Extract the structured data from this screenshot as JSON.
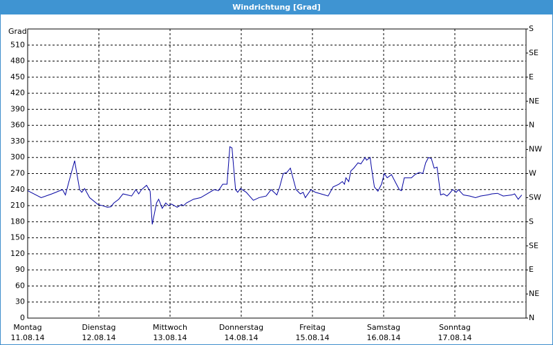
{
  "chart_data": {
    "type": "line",
    "title": "Windrichtung [Grad]",
    "y_label": "Grad",
    "color": "#0000a0",
    "grid": true,
    "xlim": [
      0,
      7
    ],
    "ylim": [
      0,
      540
    ],
    "y2lim": [
      0,
      540
    ],
    "xticks": [
      {
        "value": 0,
        "label": [
          "Montag",
          "11.08.14"
        ]
      },
      {
        "value": 1,
        "label": [
          "Dienstag",
          "12.08.14"
        ]
      },
      {
        "value": 2,
        "label": [
          "Mittwoch",
          "13.08.14"
        ]
      },
      {
        "value": 3,
        "label": [
          "Donnerstag",
          "14.08.14"
        ]
      },
      {
        "value": 4,
        "label": [
          "Freitag",
          "15.08.14"
        ]
      },
      {
        "value": 5,
        "label": [
          "Samstag",
          "16.08.14"
        ]
      },
      {
        "value": 6,
        "label": [
          "Sonntag",
          "17.08.14"
        ]
      }
    ],
    "yticks": [
      0,
      30,
      60,
      90,
      120,
      150,
      180,
      210,
      240,
      270,
      300,
      330,
      360,
      390,
      420,
      450,
      480,
      510
    ],
    "y2ticks": [
      {
        "value": 0,
        "label": "N"
      },
      {
        "value": 45,
        "label": "NE"
      },
      {
        "value": 90,
        "label": "E"
      },
      {
        "value": 135,
        "label": "SE"
      },
      {
        "value": 180,
        "label": "S"
      },
      {
        "value": 225,
        "label": "SW"
      },
      {
        "value": 270,
        "label": "W"
      },
      {
        "value": 315,
        "label": "NW"
      },
      {
        "value": 360,
        "label": "N"
      },
      {
        "value": 405,
        "label": "NE"
      },
      {
        "value": 450,
        "label": "E"
      },
      {
        "value": 495,
        "label": "SE"
      },
      {
        "value": 540,
        "label": "S"
      }
    ],
    "x": [
      0,
      0.19,
      0.34,
      0.49,
      0.53,
      0.58,
      0.66,
      0.73,
      0.76,
      0.8,
      0.87,
      0.99,
      1.05,
      1.12,
      1.17,
      1.21,
      1.28,
      1.34,
      1.4,
      1.46,
      1.52,
      1.56,
      1.6,
      1.67,
      1.72,
      1.75,
      1.81,
      1.84,
      1.89,
      1.94,
      1.98,
      2.02,
      2.1,
      2.16,
      2.19,
      2.23,
      2.33,
      2.43,
      2.52,
      2.62,
      2.68,
      2.74,
      2.8,
      2.84,
      2.87,
      2.92,
      2.95,
      2.99,
      3.07,
      3.17,
      3.25,
      3.35,
      3.42,
      3.5,
      3.54,
      3.59,
      3.64,
      3.69,
      3.77,
      3.83,
      3.87,
      3.9,
      3.98,
      4.04,
      4.17,
      4.22,
      4.29,
      4.37,
      4.42,
      4.45,
      4.47,
      4.51,
      4.54,
      4.58,
      4.64,
      4.68,
      4.74,
      4.76,
      4.81,
      4.83,
      4.87,
      4.92,
      4.97,
      5.01,
      5.05,
      5.11,
      5.18,
      5.22,
      5.25,
      5.29,
      5.39,
      5.44,
      5.5,
      5.55,
      5.59,
      5.63,
      5.67,
      5.71,
      5.75,
      5.8,
      5.84,
      5.89,
      5.92,
      5.97,
      6.02,
      6.05,
      6.12,
      6.21,
      6.29,
      6.36,
      6.46,
      6.52,
      6.6,
      6.68,
      6.8,
      6.84,
      6.89,
      6.94
    ],
    "values": [
      238,
      225,
      232,
      240,
      230,
      255,
      294,
      240,
      235,
      242,
      225,
      212,
      210,
      207,
      208,
      215,
      222,
      232,
      230,
      228,
      240,
      232,
      240,
      248,
      237,
      175,
      215,
      222,
      205,
      215,
      210,
      213,
      207,
      212,
      210,
      215,
      222,
      225,
      232,
      240,
      238,
      250,
      250,
      320,
      318,
      240,
      235,
      242,
      235,
      220,
      225,
      228,
      240,
      230,
      245,
      270,
      272,
      280,
      240,
      232,
      235,
      225,
      240,
      235,
      230,
      228,
      245,
      250,
      255,
      250,
      262,
      255,
      275,
      280,
      290,
      288,
      300,
      295,
      300,
      280,
      245,
      237,
      250,
      270,
      262,
      268,
      250,
      240,
      238,
      262,
      262,
      268,
      272,
      270,
      290,
      300,
      298,
      280,
      282,
      230,
      232,
      228,
      232,
      240,
      235,
      240,
      230,
      228,
      225,
      228,
      230,
      232,
      233,
      228,
      230,
      232,
      222,
      230
    ]
  }
}
